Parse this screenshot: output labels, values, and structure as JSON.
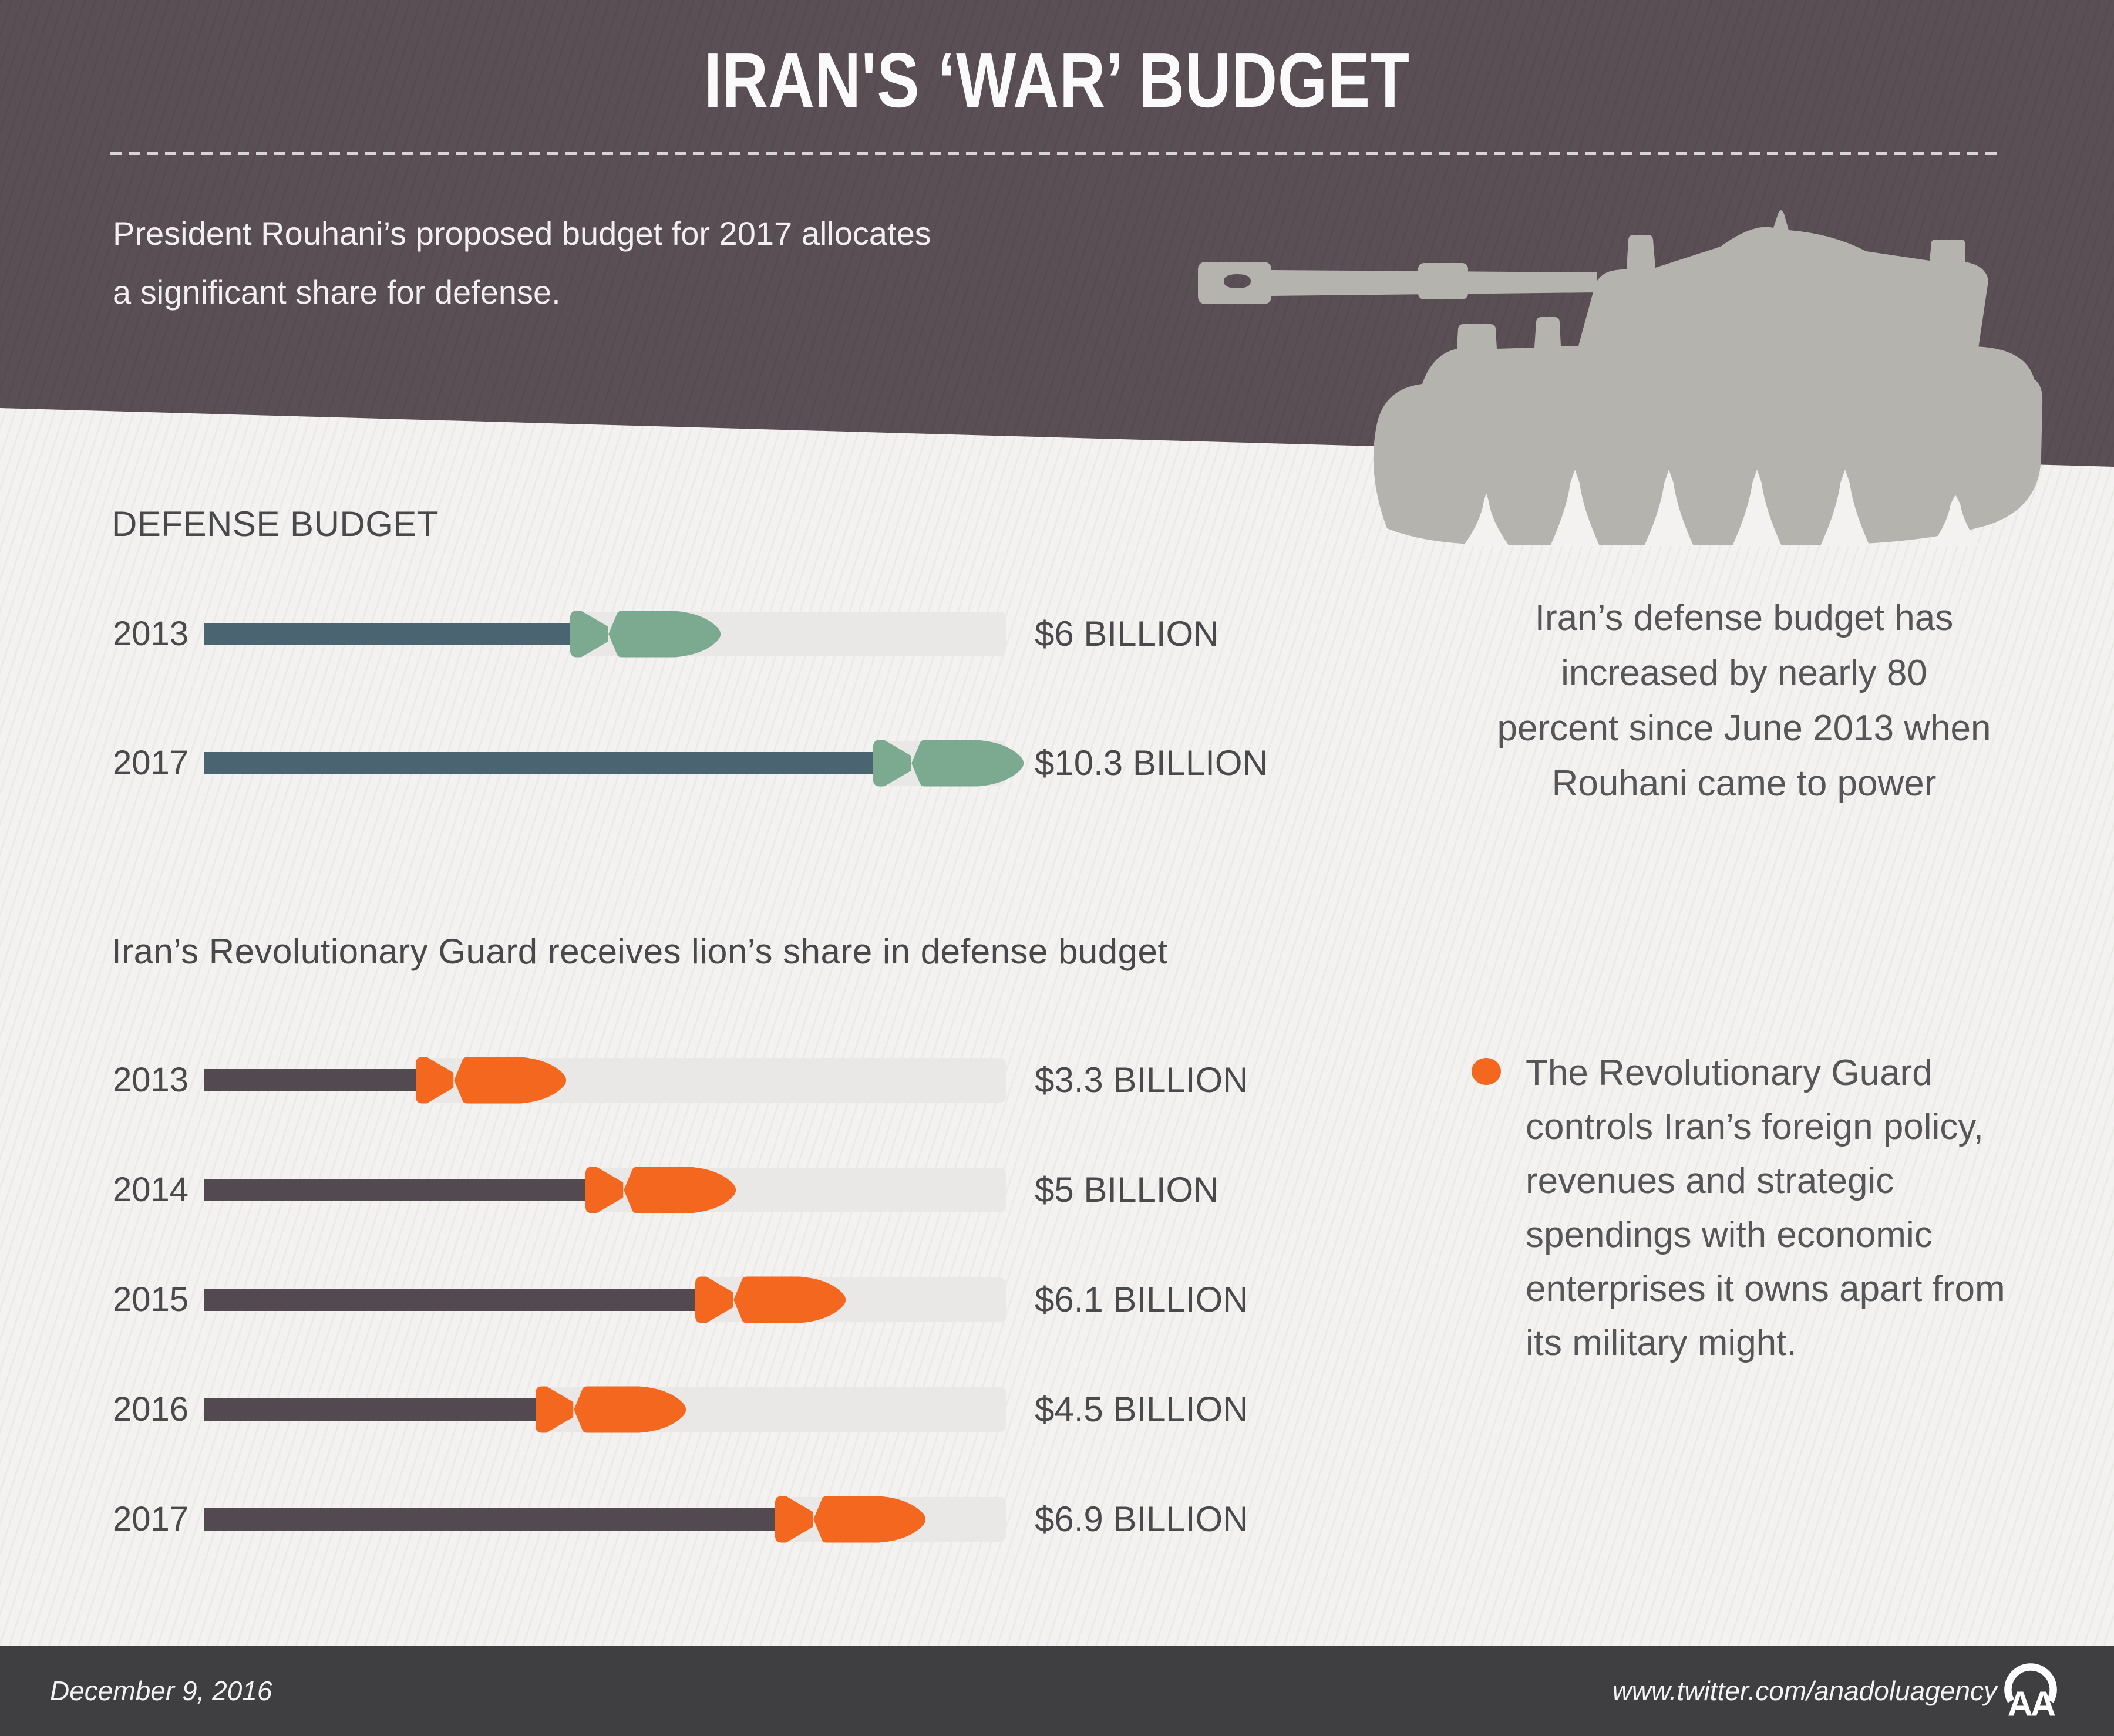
{
  "header": {
    "title": "IRAN'S ‘WAR’ BUDGET",
    "intro": "President Rouhani’s proposed budget for 2017 allocates\na significant share for defense."
  },
  "colors": {
    "header_background": "#5a4f55",
    "page_background": "#f3f2f0",
    "defense_bar": "#4b6472",
    "defense_bomb": "#7caa90",
    "guard_bar": "#534950",
    "guard_bomb": "#f4671f",
    "accent_orange": "#f4671f",
    "track_gray": "#e9e8e6",
    "tank_gray": "#b5b3ae",
    "text_dark": "#4a4a4c",
    "footer_background": "#3f3e40"
  },
  "chart_data": [
    {
      "type": "bar",
      "orientation": "horizontal",
      "title": "DEFENSE BUDGET",
      "unit": "USD billion",
      "categories": [
        "2013",
        "2017"
      ],
      "values": [
        6,
        10.3
      ],
      "value_labels": [
        "$6 BILLION",
        "$10.3 BILLION"
      ],
      "bar_color": "#4b6472",
      "bomb_color": "#7caa90",
      "grid": false,
      "legend": false,
      "annotation": "Iran’s defense budget has\nincreased by nearly 80\npercent since June 2013 when\nRouhani came to power"
    },
    {
      "type": "bar",
      "orientation": "horizontal",
      "title": "Iran’s Revolutionary Guard receives lion’s share in defense budget",
      "unit": "USD billion",
      "categories": [
        "2013",
        "2014",
        "2015",
        "2016",
        "2017"
      ],
      "values": [
        3.3,
        5,
        6.1,
        4.5,
        6.9
      ],
      "value_labels": [
        "$3.3 BILLION",
        "$5 BILLION",
        "$6.1 BILLION",
        "$4.5 BILLION",
        "$6.9 BILLION"
      ],
      "bar_color": "#534950",
      "bomb_color": "#f4671f",
      "grid": false,
      "legend": false,
      "annotation": "The Revolutionary Guard\ncontrols Iran’s foreign policy,\nrevenues and strategic\nspendings with economic\nenterprises it owns apart from\nits military might."
    }
  ],
  "footer": {
    "date": "December 9, 2016",
    "twitter_url": "www.twitter.com/anadoluagency",
    "logo_text": "AA"
  }
}
